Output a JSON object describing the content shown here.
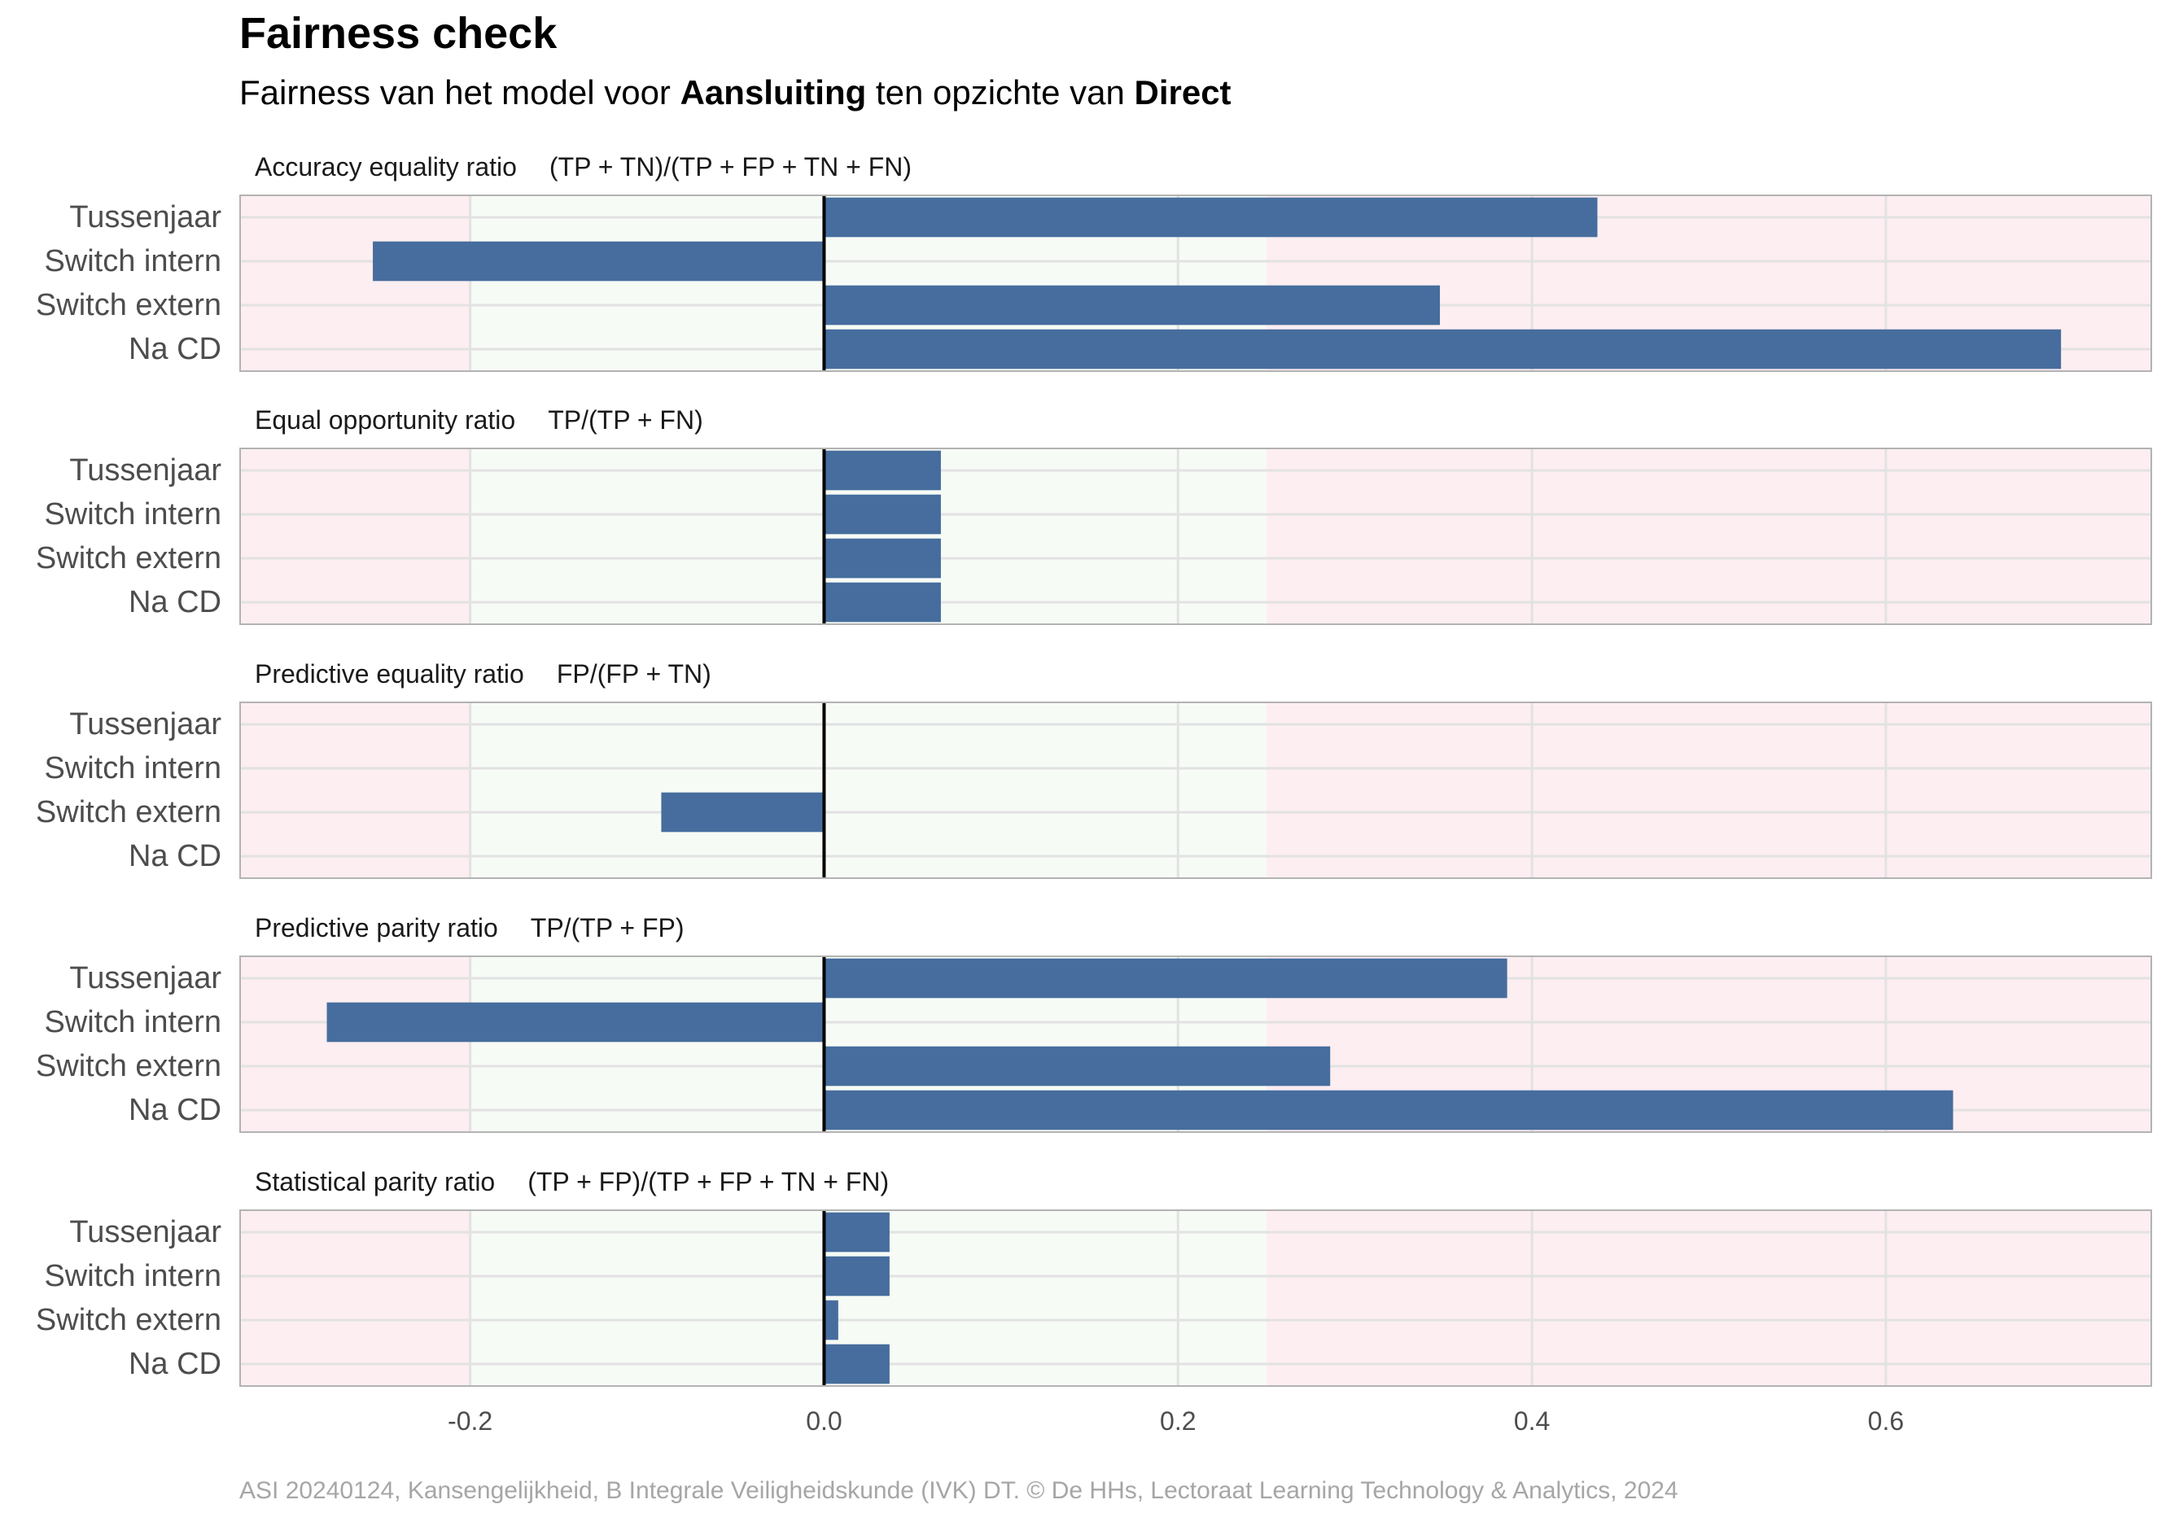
{
  "title": "Fairness check",
  "subtitle": {
    "part1": "Fairness van het model voor ",
    "group": "Aansluiting",
    "part2": " ten opzichte van ",
    "reference": "Direct"
  },
  "caption": "ASI 20240124, Kansengelijkheid, B Integrale Veiligheidskunde (IVK) DT. © De HHs, Lectoraat Learning Technology & Analytics, 2024",
  "colors": {
    "bar": "#466d9d",
    "fair_zone": "#f7fbf6",
    "unfair_zone": "#fdeef1",
    "zero_line": "#000000"
  },
  "chart_data": {
    "type": "bar",
    "orientation": "horizontal",
    "facets": "stacked",
    "categories": [
      "Tussenjaar",
      "Switch intern",
      "Switch extern",
      "Na CD"
    ],
    "x_ticks": [
      -0.2,
      0.0,
      0.2,
      0.4,
      0.6
    ],
    "x_tick_labels": [
      "-0.2",
      "0.0",
      "0.2",
      "0.4",
      "0.6"
    ],
    "xlim": [
      -0.33,
      0.75
    ],
    "fair_range": [
      -0.2,
      0.25
    ],
    "grid": true,
    "panels": [
      {
        "name": "Accuracy equality ratio",
        "formula": "(TP + TN)/(TP + FP + TN + FN)",
        "values": [
          0.437,
          -0.255,
          0.348,
          0.699
        ]
      },
      {
        "name": "Equal opportunity ratio",
        "formula": "TP/(TP + FN)",
        "values": [
          0.066,
          0.066,
          0.066,
          0.066
        ]
      },
      {
        "name": "Predictive equality ratio",
        "formula": "FP/(FP + TN)",
        "values": [
          0,
          0,
          -0.092,
          0
        ]
      },
      {
        "name": "Predictive parity ratio",
        "formula": "TP/(TP + FP)",
        "values": [
          0.386,
          -0.281,
          0.286,
          0.638
        ]
      },
      {
        "name": "Statistical parity ratio",
        "formula": "(TP + FP)/(TP + FP + TN + FN)",
        "values": [
          0.037,
          0.037,
          0.008,
          0.037
        ]
      }
    ]
  }
}
